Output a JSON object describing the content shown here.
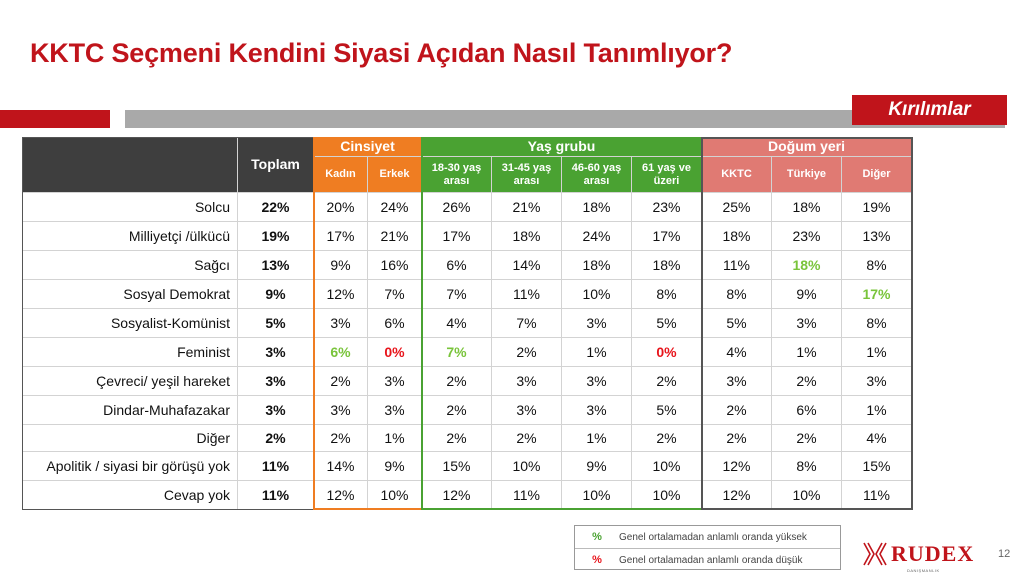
{
  "title": "KKTC Seçmeni Kendini Siyasi Açıdan Nasıl Tanımlıyor?",
  "kirilim_label": "Kırılımlar",
  "table": {
    "total_header": "Toplam",
    "groups": [
      {
        "label": "Cinsiyet",
        "color": "#ef7d22"
      },
      {
        "label": "Yaş grubu",
        "color": "#4aa232"
      },
      {
        "label": "Doğum yeri",
        "color": "#e07a73"
      }
    ],
    "subheaders": [
      "Kadın",
      "Erkek",
      "18-30 yaş arası",
      "31-45 yaş arası",
      "46-60 yaş arası",
      "61 yaş ve üzeri",
      "KKTC",
      "Türkiye",
      "Diğer"
    ],
    "rows": [
      {
        "label": "Solcu",
        "total": "22%",
        "values": [
          "20%",
          "24%",
          "26%",
          "21%",
          "18%",
          "23%",
          "25%",
          "18%",
          "19%"
        ],
        "marks": [
          "",
          "",
          "",
          "",
          "",
          "",
          "",
          "",
          ""
        ]
      },
      {
        "label": "Milliyetçi /ülkücü",
        "total": "19%",
        "values": [
          "17%",
          "21%",
          "17%",
          "18%",
          "24%",
          "17%",
          "18%",
          "23%",
          "13%"
        ],
        "marks": [
          "",
          "",
          "",
          "",
          "",
          "",
          "",
          "",
          ""
        ]
      },
      {
        "label": "Sağcı",
        "total": "13%",
        "values": [
          "9%",
          "16%",
          "6%",
          "14%",
          "18%",
          "18%",
          "11%",
          "18%",
          "8%"
        ],
        "marks": [
          "",
          "",
          "",
          "",
          "",
          "",
          "",
          "hi",
          ""
        ]
      },
      {
        "label": "Sosyal Demokrat",
        "total": "9%",
        "values": [
          "12%",
          "7%",
          "7%",
          "11%",
          "10%",
          "8%",
          "8%",
          "9%",
          "17%"
        ],
        "marks": [
          "",
          "",
          "",
          "",
          "",
          "",
          "",
          "",
          "hi"
        ]
      },
      {
        "label": "Sosyalist-Komünist",
        "total": "5%",
        "values": [
          "3%",
          "6%",
          "4%",
          "7%",
          "3%",
          "5%",
          "5%",
          "3%",
          "8%"
        ],
        "marks": [
          "",
          "",
          "",
          "",
          "",
          "",
          "",
          "",
          ""
        ]
      },
      {
        "label": "Feminist",
        "total": "3%",
        "values": [
          "6%",
          "0%",
          "7%",
          "2%",
          "1%",
          "0%",
          "4%",
          "1%",
          "1%"
        ],
        "marks": [
          "hi",
          "lo",
          "hi",
          "",
          "",
          "lo",
          "",
          "",
          ""
        ]
      },
      {
        "label": "Çevreci/ yeşil hareket",
        "total": "3%",
        "values": [
          "2%",
          "3%",
          "2%",
          "3%",
          "3%",
          "2%",
          "3%",
          "2%",
          "3%"
        ],
        "marks": [
          "",
          "",
          "",
          "",
          "",
          "",
          "",
          "",
          ""
        ]
      },
      {
        "label": "Dindar-Muhafazakar",
        "total": "3%",
        "values": [
          "3%",
          "3%",
          "2%",
          "3%",
          "3%",
          "5%",
          "2%",
          "6%",
          "1%"
        ],
        "marks": [
          "",
          "",
          "",
          "",
          "",
          "",
          "",
          "",
          ""
        ]
      },
      {
        "label": "Diğer",
        "total": "2%",
        "values": [
          "2%",
          "1%",
          "2%",
          "2%",
          "1%",
          "2%",
          "2%",
          "2%",
          "4%"
        ],
        "marks": [
          "",
          "",
          "",
          "",
          "",
          "",
          "",
          "",
          ""
        ]
      },
      {
        "label": "Apolitik / siyasi bir görüşü yok",
        "total": "11%",
        "values": [
          "14%",
          "9%",
          "15%",
          "10%",
          "9%",
          "10%",
          "12%",
          "8%",
          "15%"
        ],
        "marks": [
          "",
          "",
          "",
          "",
          "",
          "",
          "",
          "",
          ""
        ]
      },
      {
        "label": "Cevap yok",
        "total": "11%",
        "values": [
          "12%",
          "10%",
          "12%",
          "11%",
          "10%",
          "10%",
          "12%",
          "10%",
          "11%"
        ],
        "marks": [
          "",
          "",
          "",
          "",
          "",
          "",
          "",
          "",
          ""
        ]
      }
    ]
  },
  "legend": [
    {
      "symbol": "%",
      "color": "#4aa232",
      "text": "Genel ortalamadan anlamlı oranda yüksek"
    },
    {
      "symbol": "%",
      "color": "#e8141b",
      "text": "Genel ortalamadan anlamlı oranda düşük"
    }
  ],
  "logo": {
    "name": "RUDEX",
    "tagline": "DANIŞMANLIK"
  },
  "page_number": "12"
}
